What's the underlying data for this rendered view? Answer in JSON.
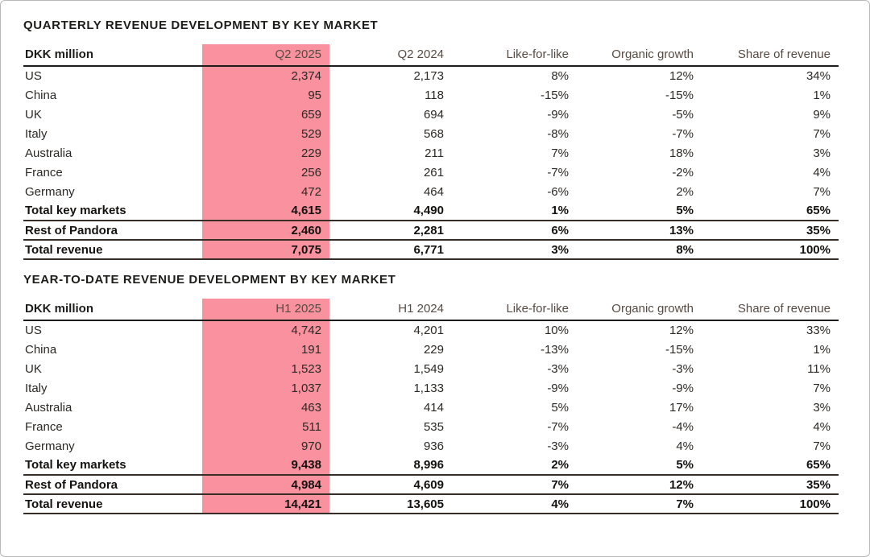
{
  "page": {
    "background": "#ffffff",
    "frame_border_color": "#b9b9b9"
  },
  "colors": {
    "highlight_pink": "#F9929E",
    "header_rule": "#1d1d1b",
    "total_rule": "#382e28",
    "body_text": "#2b2825"
  },
  "tables": [
    {
      "title": "QUARTERLY REVENUE DEVELOPMENT BY KEY MARKET",
      "columns": [
        "DKK million",
        "Q2 2025",
        "Q2 2024",
        "Like-for-like",
        "Organic growth",
        "Share of revenue"
      ],
      "highlight_column": 1,
      "rows": [
        {
          "label": "US",
          "values": [
            "2,374",
            "2,173",
            "8%",
            "12%",
            "34%"
          ],
          "bold": false
        },
        {
          "label": "China",
          "values": [
            "95",
            "118",
            "-15%",
            "-15%",
            "1%"
          ],
          "bold": false
        },
        {
          "label": "UK",
          "values": [
            "659",
            "694",
            "-9%",
            "-5%",
            "9%"
          ],
          "bold": false
        },
        {
          "label": "Italy",
          "values": [
            "529",
            "568",
            "-8%",
            "-7%",
            "7%"
          ],
          "bold": false
        },
        {
          "label": "Australia",
          "values": [
            "229",
            "211",
            "7%",
            "18%",
            "3%"
          ],
          "bold": false
        },
        {
          "label": "France",
          "values": [
            "256",
            "261",
            "-7%",
            "-2%",
            "4%"
          ],
          "bold": false
        },
        {
          "label": "Germany",
          "values": [
            "472",
            "464",
            "-6%",
            "2%",
            "7%"
          ],
          "bold": false
        },
        {
          "label": "Total key markets",
          "values": [
            "4,615",
            "4,490",
            "1%",
            "5%",
            "65%"
          ],
          "bold": true
        },
        {
          "label": "Rest of Pandora",
          "values": [
            "2,460",
            "2,281",
            "6%",
            "13%",
            "35%"
          ],
          "bold": true
        },
        {
          "label": "Total revenue",
          "values": [
            "7,075",
            "6,771",
            "3%",
            "8%",
            "100%"
          ],
          "bold": true
        }
      ]
    },
    {
      "title": "YEAR-TO-DATE REVENUE DEVELOPMENT BY KEY MARKET",
      "columns": [
        "DKK million",
        "H1 2025",
        "H1 2024",
        "Like-for-like",
        "Organic growth",
        "Share of revenue"
      ],
      "highlight_column": 1,
      "rows": [
        {
          "label": "US",
          "values": [
            "4,742",
            "4,201",
            "10%",
            "12%",
            "33%"
          ],
          "bold": false
        },
        {
          "label": "China",
          "values": [
            "191",
            "229",
            "-13%",
            "-15%",
            "1%"
          ],
          "bold": false
        },
        {
          "label": "UK",
          "values": [
            "1,523",
            "1,549",
            "-3%",
            "-3%",
            "11%"
          ],
          "bold": false
        },
        {
          "label": "Italy",
          "values": [
            "1,037",
            "1,133",
            "-9%",
            "-9%",
            "7%"
          ],
          "bold": false
        },
        {
          "label": "Australia",
          "values": [
            "463",
            "414",
            "5%",
            "17%",
            "3%"
          ],
          "bold": false
        },
        {
          "label": "France",
          "values": [
            "511",
            "535",
            "-7%",
            "-4%",
            "4%"
          ],
          "bold": false
        },
        {
          "label": "Germany",
          "values": [
            "970",
            "936",
            "-3%",
            "4%",
            "7%"
          ],
          "bold": false
        },
        {
          "label": "Total key markets",
          "values": [
            "9,438",
            "8,996",
            "2%",
            "5%",
            "65%"
          ],
          "bold": true
        },
        {
          "label": "Rest of Pandora",
          "values": [
            "4,984",
            "4,609",
            "7%",
            "12%",
            "35%"
          ],
          "bold": true
        },
        {
          "label": "Total revenue",
          "values": [
            "14,421",
            "13,605",
            "4%",
            "7%",
            "100%"
          ],
          "bold": true
        }
      ]
    }
  ]
}
